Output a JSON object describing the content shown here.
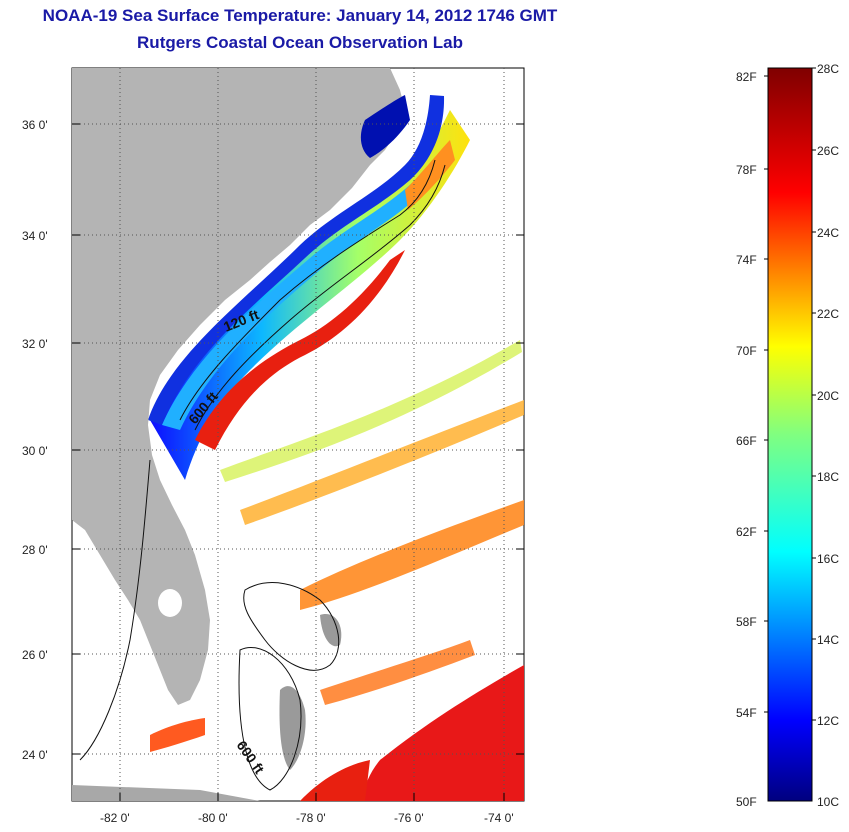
{
  "title": "NOAA-19 Sea Surface Temperature:  January 14, 2012 1746 GMT",
  "subtitle": "Rutgers Coastal Ocean Observation Lab",
  "map": {
    "lon_ticks": [
      "-82 0'",
      "-80 0'",
      "-78 0'",
      "-76 0'",
      "-74 0'"
    ],
    "lat_ticks": [
      "36 0'",
      "34 0'",
      "32 0'",
      "30 0'",
      "28 0'",
      "26 0'",
      "24 0'"
    ],
    "contour_labels": [
      "120 ft",
      "600 ft",
      "600 ft"
    ],
    "land_color": "#b4b4b4",
    "grid": "dotted"
  },
  "colorbar": {
    "f_labels": [
      "82F",
      "78F",
      "74F",
      "70F",
      "66F",
      "62F",
      "58F",
      "54F",
      "50F"
    ],
    "c_labels": [
      "28C",
      "26C",
      "24C",
      "22C",
      "20C",
      "18C",
      "16C",
      "14C",
      "12C",
      "10C"
    ],
    "colormap": "jet",
    "range_c": [
      10,
      28
    ]
  }
}
